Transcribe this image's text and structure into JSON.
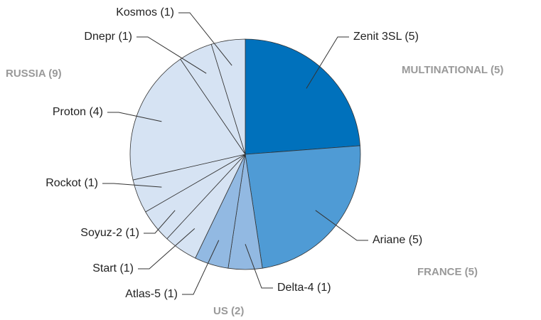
{
  "chart_data": {
    "type": "pie",
    "categories": [
      "Zenit 3SL (5)",
      "Ariane (5)",
      "Delta-4 (1)",
      "Atlas-5 (1)",
      "Start (1)",
      "Soyuz-2 (1)",
      "Rockot (1)",
      "Proton (4)",
      "Dnepr (1)",
      "Kosmos (1)"
    ],
    "values": [
      5,
      5,
      1,
      1,
      1,
      1,
      1,
      4,
      1,
      1
    ],
    "colors": [
      "#0071bc",
      "#4f9bd5",
      "#92b9e2",
      "#92b9e2",
      "#d6e3f3",
      "#d6e3f3",
      "#d6e3f3",
      "#d6e3f3",
      "#d6e3f3",
      "#d6e3f3"
    ],
    "annotations": [
      "MULTINATIONAL (5)",
      "FRANCE (5)",
      "US (2)",
      "RUSSIA (9)"
    ]
  }
}
